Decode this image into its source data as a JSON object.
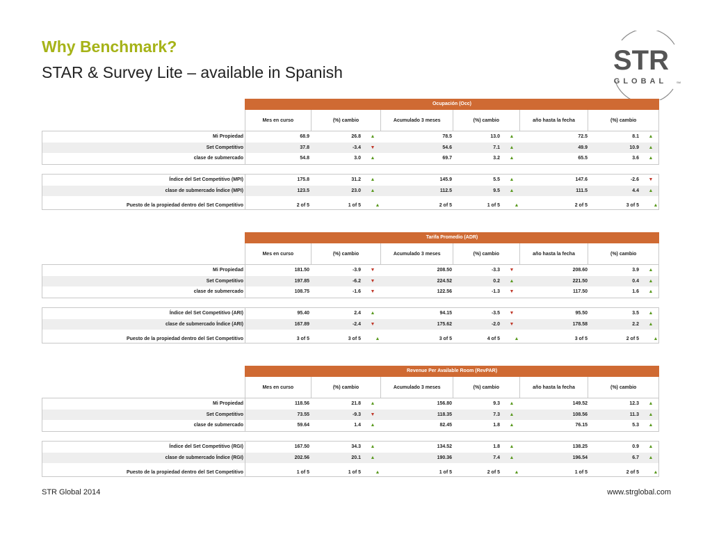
{
  "title": "Why Benchmark?",
  "subtitle": "STAR & Survey Lite – available in Spanish",
  "logo": {
    "line1": "STR",
    "line2": "GLOBAL",
    "mark": "SM"
  },
  "footer": {
    "left": "STR Global 2014",
    "right": "www.strglobal.com"
  },
  "colors": {
    "accent": "#cf6a33",
    "title": "#a6b318",
    "up": "#5a9a1f",
    "down": "#c0392b"
  },
  "columns": [
    "Mes en curso",
    "(%) cambio",
    "Acumulado 3 meses",
    "(%) cambio",
    "año hasta la fecha",
    "(%) cambio"
  ],
  "sections": [
    {
      "header": "Ocupación (Occ)",
      "rows1": [
        {
          "label": "Mi Propiedad",
          "cells": [
            "68.9",
            "26.8",
            "78.5",
            "13.0",
            "72.5",
            "8.1"
          ],
          "arrows": [
            "up",
            "up",
            "up"
          ]
        },
        {
          "label": "Set Competitivo",
          "cells": [
            "37.8",
            "-3.4",
            "54.6",
            "7.1",
            "49.9",
            "10.9"
          ],
          "arrows": [
            "down",
            "up",
            "up"
          ]
        },
        {
          "label": "clase de submercado",
          "cells": [
            "54.8",
            "3.0",
            "69.7",
            "3.2",
            "65.5",
            "3.6"
          ],
          "arrows": [
            "up",
            "up",
            "up"
          ]
        }
      ],
      "rows2": [
        {
          "label": "Índice del Set Competitivo (MPI)",
          "cells": [
            "175.8",
            "31.2",
            "145.9",
            "5.5",
            "147.6",
            "-2.6"
          ],
          "arrows": [
            "up",
            "up",
            "down"
          ]
        },
        {
          "label": "clase de submercado Índice (MPI)",
          "cells": [
            "123.5",
            "23.0",
            "112.5",
            "9.5",
            "111.5",
            "4.4"
          ],
          "arrows": [
            "up",
            "up",
            "up"
          ]
        },
        {
          "label": "Puesto de la propiedad dentro del Set Competitivo",
          "cells": [
            "2 of 5",
            "1 of 5",
            "2 of 5",
            "1 of 5",
            "2 of 5",
            "3 of 5"
          ],
          "arrows": [
            "up",
            "up",
            "up"
          ]
        }
      ]
    },
    {
      "header": "Tarifa Promedio (ADR)",
      "rows1": [
        {
          "label": "Mi Propiedad",
          "cells": [
            "181.50",
            "-3.9",
            "208.50",
            "-3.3",
            "208.60",
            "3.9"
          ],
          "arrows": [
            "down",
            "down",
            "up"
          ]
        },
        {
          "label": "Set Competitivo",
          "cells": [
            "197.85",
            "-6.2",
            "224.52",
            "0.2",
            "221.50",
            "0.4"
          ],
          "arrows": [
            "down",
            "up",
            "up"
          ]
        },
        {
          "label": "clase de submercado",
          "cells": [
            "108.75",
            "-1.6",
            "122.56",
            "-1.3",
            "117.50",
            "1.6"
          ],
          "arrows": [
            "down",
            "down",
            "up"
          ]
        }
      ],
      "rows2": [
        {
          "label": "Índice del Set Competitivo (ARI)",
          "cells": [
            "95.40",
            "2.4",
            "94.15",
            "-3.5",
            "95.50",
            "3.5"
          ],
          "arrows": [
            "up",
            "down",
            "up"
          ]
        },
        {
          "label": "clase de submercado Índice (ARI)",
          "cells": [
            "167.89",
            "-2.4",
            "175.62",
            "-2.0",
            "178.58",
            "2.2"
          ],
          "arrows": [
            "down",
            "down",
            "up"
          ]
        },
        {
          "label": "Puesto de la propiedad dentro del Set Competitivo",
          "cells": [
            "3 of 5",
            "3 of 5",
            "3 of 5",
            "4 of 5",
            "3 of 5",
            "2 of 5"
          ],
          "arrows": [
            "up",
            "up",
            "up"
          ]
        }
      ]
    },
    {
      "header": "Revenue Per Available Room (RevPAR)",
      "rows1": [
        {
          "label": "Mi Propiedad",
          "cells": [
            "118.56",
            "21.8",
            "156.80",
            "9.3",
            "149.52",
            "12.3"
          ],
          "arrows": [
            "up",
            "up",
            "up"
          ]
        },
        {
          "label": "Set Competitivo",
          "cells": [
            "73.55",
            "-9.3",
            "118.35",
            "7.3",
            "108.56",
            "11.3"
          ],
          "arrows": [
            "down",
            "up",
            "up"
          ]
        },
        {
          "label": "clase de submercado",
          "cells": [
            "59.64",
            "1.4",
            "82.45",
            "1.8",
            "76.15",
            "5.3"
          ],
          "arrows": [
            "up",
            "up",
            "up"
          ]
        }
      ],
      "rows2": [
        {
          "label": "Índice del Set Competitivo (RGI)",
          "cells": [
            "167.50",
            "34.3",
            "134.52",
            "1.8",
            "138.25",
            "0.9"
          ],
          "arrows": [
            "up",
            "up",
            "up"
          ]
        },
        {
          "label": "clase de submercado Índice (RGI)",
          "cells": [
            "202.56",
            "20.1",
            "190.36",
            "7.4",
            "196.54",
            "6.7"
          ],
          "arrows": [
            "up",
            "up",
            "up"
          ]
        },
        {
          "label": "Puesto de la propiedad dentro del Set Competitivo",
          "cells": [
            "1 of 5",
            "1 of 5",
            "1 of 5",
            "2 of 5",
            "1 of 5",
            "2 of 5"
          ],
          "arrows": [
            "up",
            "up",
            "up"
          ]
        }
      ]
    }
  ]
}
